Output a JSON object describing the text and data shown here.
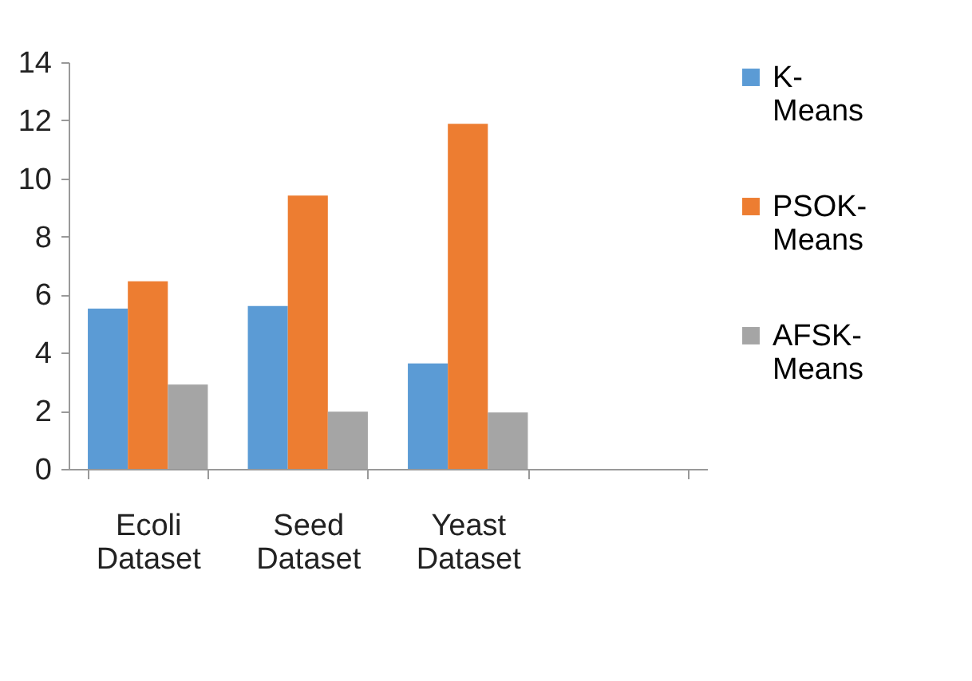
{
  "chart_data": {
    "type": "bar",
    "categories": [
      "Ecoli Dataset",
      "Seed Dataset",
      "Yeast Dataset",
      null
    ],
    "series": [
      {
        "name": "K-Means",
        "color": "#5b9bd5",
        "values": [
          5.52,
          5.61,
          3.63,
          null
        ]
      },
      {
        "name": "PSOK-Means",
        "color": "#ed7d31",
        "values": [
          6.46,
          9.41,
          11.88,
          null
        ]
      },
      {
        "name": "AFSK-Means",
        "color": "#a5a5a5",
        "values": [
          2.9,
          1.97,
          1.94,
          null
        ]
      }
    ],
    "ylim": [
      0,
      14
    ],
    "yticks": [
      0,
      2,
      4,
      6,
      8,
      10,
      12,
      14
    ],
    "grid": false,
    "legend": "right"
  }
}
